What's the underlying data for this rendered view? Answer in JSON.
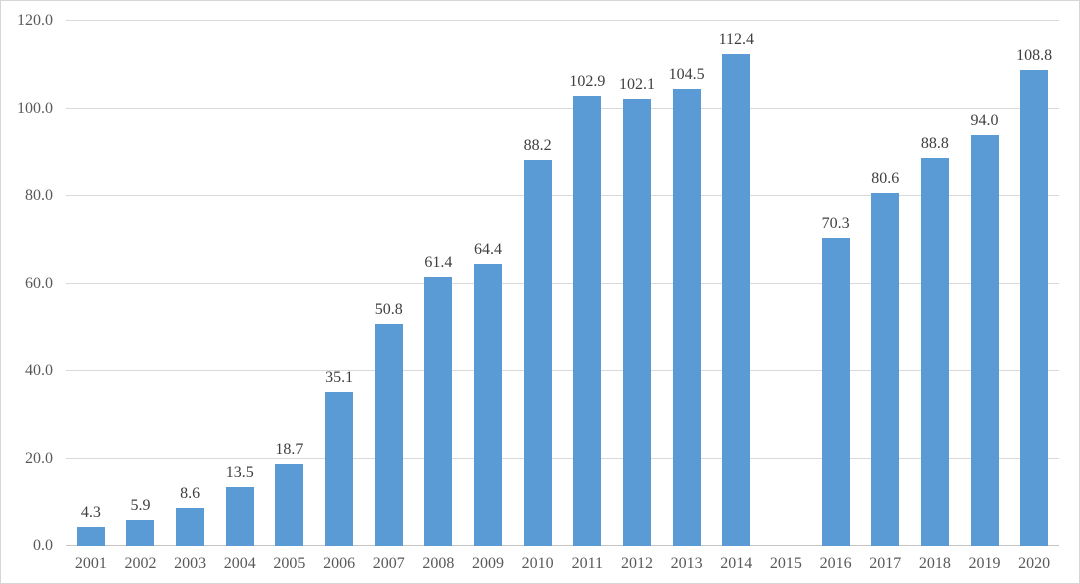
{
  "chart_data": {
    "type": "bar",
    "title": "",
    "xlabel": "",
    "ylabel": "",
    "categories": [
      "2001",
      "2002",
      "2003",
      "2004",
      "2005",
      "2006",
      "2007",
      "2008",
      "2009",
      "2010",
      "2011",
      "2012",
      "2013",
      "2014",
      "2015",
      "2016",
      "2017",
      "2018",
      "2019",
      "2020"
    ],
    "values": [
      4.3,
      5.9,
      8.6,
      13.5,
      18.7,
      35.1,
      50.8,
      61.4,
      64.4,
      88.2,
      102.9,
      102.1,
      104.5,
      112.4,
      null,
      70.3,
      80.6,
      88.8,
      94.0,
      108.8
    ],
    "data_labels": [
      "4.3",
      "5.9",
      "8.6",
      "13.5",
      "18.7",
      "35.1",
      "50.8",
      "61.4",
      "64.4",
      "88.2",
      "102.9",
      "102.1",
      "104.5",
      "112.4",
      "",
      "70.3",
      "80.6",
      "88.8",
      "94.0",
      "108.8"
    ],
    "ylim": [
      0,
      120
    ],
    "ytick_step": 20,
    "ytick_labels": [
      "0.0",
      "20.0",
      "40.0",
      "60.0",
      "80.0",
      "100.0",
      "120.0"
    ],
    "grid": true,
    "legend": "none",
    "bar_color": "#5b9bd5",
    "gridline_color": "#d9d9d9",
    "axis_label_color": "#595959",
    "data_label_color": "#3f3f3f"
  }
}
